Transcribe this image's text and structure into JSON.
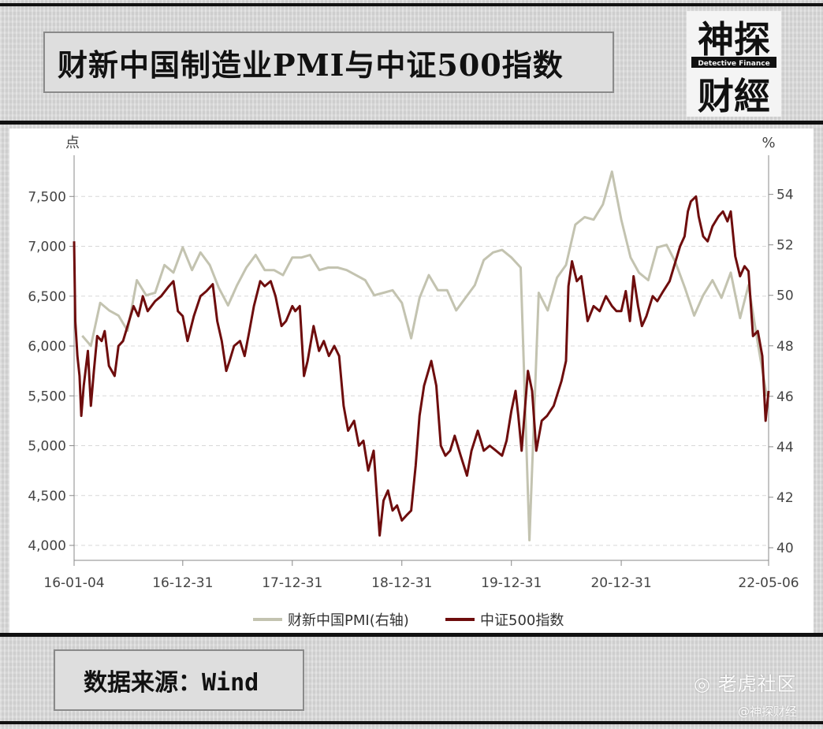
{
  "header": {
    "title": "财新中国制造业PMI与中证500指数",
    "logo_top": "神探",
    "logo_middle": "Detective Finance",
    "logo_bottom": "财經"
  },
  "footer": {
    "source": "数据来源：Wind",
    "watermark_main": "老虎社区",
    "watermark_sub": "@神探财经"
  },
  "colors": {
    "pmi_line": "#c3c3b0",
    "csi500_line": "#6e0d0d",
    "grid": "#d8d8d8"
  },
  "chart_data": {
    "type": "line",
    "left_unit": "点",
    "right_unit": "%",
    "x_ticks": [
      "16-01-04",
      "16-12-31",
      "17-12-31",
      "18-12-31",
      "19-12-31",
      "20-12-31",
      "22-05-06"
    ],
    "y_left_ticks": [
      "7,500",
      "7,000",
      "6,500",
      "6,000",
      "5,500",
      "5,000",
      "4,500",
      "4,000"
    ],
    "y_right_ticks": [
      "54",
      "52",
      "50",
      "48",
      "46",
      "44",
      "42",
      "40"
    ],
    "y_left_range": [
      3850,
      7850
    ],
    "y_right_range": [
      39.5,
      55.3
    ],
    "x_range": [
      "2016-01-04",
      "2022-05-06"
    ],
    "legend_position": "bottom",
    "grid": true,
    "series": [
      {
        "name": "财新中国PMI(右轴)",
        "axis": "right",
        "points": [
          [
            "2016-01-31",
            48.4
          ],
          [
            "2016-02-29",
            48.0
          ],
          [
            "2016-03-31",
            49.7
          ],
          [
            "2016-04-30",
            49.4
          ],
          [
            "2016-05-31",
            49.2
          ],
          [
            "2016-06-30",
            48.6
          ],
          [
            "2016-07-31",
            50.6
          ],
          [
            "2016-08-31",
            50.0
          ],
          [
            "2016-09-30",
            50.1
          ],
          [
            "2016-10-31",
            51.2
          ],
          [
            "2016-11-30",
            50.9
          ],
          [
            "2016-12-31",
            51.9
          ],
          [
            "2017-01-31",
            51.0
          ],
          [
            "2017-02-28",
            51.7
          ],
          [
            "2017-03-31",
            51.2
          ],
          [
            "2017-04-30",
            50.3
          ],
          [
            "2017-05-31",
            49.6
          ],
          [
            "2017-06-30",
            50.4
          ],
          [
            "2017-07-31",
            51.1
          ],
          [
            "2017-08-31",
            51.6
          ],
          [
            "2017-09-30",
            51.0
          ],
          [
            "2017-10-31",
            51.0
          ],
          [
            "2017-11-30",
            50.8
          ],
          [
            "2017-12-31",
            51.5
          ],
          [
            "2018-01-31",
            51.5
          ],
          [
            "2018-02-28",
            51.6
          ],
          [
            "2018-03-31",
            51.0
          ],
          [
            "2018-04-30",
            51.1
          ],
          [
            "2018-05-31",
            51.1
          ],
          [
            "2018-06-30",
            51.0
          ],
          [
            "2018-07-31",
            50.8
          ],
          [
            "2018-08-31",
            50.6
          ],
          [
            "2018-09-30",
            50.0
          ],
          [
            "2018-10-31",
            50.1
          ],
          [
            "2018-11-30",
            50.2
          ],
          [
            "2018-12-31",
            49.7
          ],
          [
            "2019-01-31",
            48.3
          ],
          [
            "2019-02-28",
            49.9
          ],
          [
            "2019-03-31",
            50.8
          ],
          [
            "2019-04-30",
            50.2
          ],
          [
            "2019-05-31",
            50.2
          ],
          [
            "2019-06-30",
            49.4
          ],
          [
            "2019-07-31",
            49.9
          ],
          [
            "2019-08-31",
            50.4
          ],
          [
            "2019-09-30",
            51.4
          ],
          [
            "2019-10-31",
            51.7
          ],
          [
            "2019-11-30",
            51.8
          ],
          [
            "2019-12-31",
            51.5
          ],
          [
            "2020-01-31",
            51.1
          ],
          [
            "2020-02-29",
            40.3
          ],
          [
            "2020-03-31",
            50.1
          ],
          [
            "2020-04-30",
            49.4
          ],
          [
            "2020-05-31",
            50.7
          ],
          [
            "2020-06-30",
            51.2
          ],
          [
            "2020-07-31",
            52.8
          ],
          [
            "2020-08-31",
            53.1
          ],
          [
            "2020-09-30",
            53.0
          ],
          [
            "2020-10-31",
            53.6
          ],
          [
            "2020-11-30",
            54.9
          ],
          [
            "2020-12-31",
            53.0
          ],
          [
            "2021-01-31",
            51.5
          ],
          [
            "2021-02-28",
            50.9
          ],
          [
            "2021-03-31",
            50.6
          ],
          [
            "2021-04-30",
            51.9
          ],
          [
            "2021-05-31",
            52.0
          ],
          [
            "2021-06-30",
            51.3
          ],
          [
            "2021-07-31",
            50.3
          ],
          [
            "2021-08-31",
            49.2
          ],
          [
            "2021-09-30",
            50.0
          ],
          [
            "2021-10-31",
            50.6
          ],
          [
            "2021-11-30",
            49.9
          ],
          [
            "2021-12-31",
            50.9
          ],
          [
            "2022-01-31",
            49.1
          ],
          [
            "2022-02-28",
            50.4
          ],
          [
            "2022-03-31",
            48.1
          ],
          [
            "2022-04-30",
            46.0
          ]
        ]
      },
      {
        "name": "中证500指数",
        "axis": "left",
        "points": [
          [
            "2016-01-04",
            7050
          ],
          [
            "2016-01-08",
            6250
          ],
          [
            "2016-01-15",
            5900
          ],
          [
            "2016-01-22",
            5700
          ],
          [
            "2016-01-28",
            5300
          ],
          [
            "2016-02-05",
            5600
          ],
          [
            "2016-02-19",
            5950
          ],
          [
            "2016-02-29",
            5400
          ],
          [
            "2016-03-10",
            5750
          ],
          [
            "2016-03-21",
            6100
          ],
          [
            "2016-04-05",
            6050
          ],
          [
            "2016-04-15",
            6150
          ],
          [
            "2016-04-29",
            5800
          ],
          [
            "2016-05-18",
            5700
          ],
          [
            "2016-05-31",
            6000
          ],
          [
            "2016-06-15",
            6050
          ],
          [
            "2016-06-30",
            6200
          ],
          [
            "2016-07-20",
            6400
          ],
          [
            "2016-08-05",
            6300
          ],
          [
            "2016-08-20",
            6500
          ],
          [
            "2016-09-05",
            6350
          ],
          [
            "2016-09-30",
            6450
          ],
          [
            "2016-10-20",
            6500
          ],
          [
            "2016-11-15",
            6600
          ],
          [
            "2016-11-30",
            6650
          ],
          [
            "2016-12-15",
            6350
          ],
          [
            "2016-12-31",
            6300
          ],
          [
            "2017-01-16",
            6050
          ],
          [
            "2017-02-06",
            6300
          ],
          [
            "2017-02-28",
            6500
          ],
          [
            "2017-03-20",
            6550
          ],
          [
            "2017-04-10",
            6620
          ],
          [
            "2017-04-25",
            6250
          ],
          [
            "2017-05-10",
            6050
          ],
          [
            "2017-05-25",
            5750
          ],
          [
            "2017-06-05",
            5850
          ],
          [
            "2017-06-20",
            6000
          ],
          [
            "2017-07-10",
            6050
          ],
          [
            "2017-07-25",
            5900
          ],
          [
            "2017-08-10",
            6150
          ],
          [
            "2017-08-25",
            6400
          ],
          [
            "2017-09-15",
            6650
          ],
          [
            "2017-09-30",
            6600
          ],
          [
            "2017-10-20",
            6650
          ],
          [
            "2017-11-05",
            6500
          ],
          [
            "2017-11-25",
            6200
          ],
          [
            "2017-12-10",
            6250
          ],
          [
            "2017-12-31",
            6400
          ],
          [
            "2018-01-10",
            6350
          ],
          [
            "2018-01-25",
            6400
          ],
          [
            "2018-02-08",
            5700
          ],
          [
            "2018-02-20",
            5850
          ],
          [
            "2018-03-12",
            6200
          ],
          [
            "2018-03-30",
            5950
          ],
          [
            "2018-04-15",
            6050
          ],
          [
            "2018-05-02",
            5900
          ],
          [
            "2018-05-20",
            6000
          ],
          [
            "2018-06-05",
            5900
          ],
          [
            "2018-06-20",
            5400
          ],
          [
            "2018-07-05",
            5150
          ],
          [
            "2018-07-25",
            5250
          ],
          [
            "2018-08-10",
            5000
          ],
          [
            "2018-08-25",
            5050
          ],
          [
            "2018-09-10",
            4750
          ],
          [
            "2018-09-28",
            4950
          ],
          [
            "2018-10-18",
            4100
          ],
          [
            "2018-10-31",
            4450
          ],
          [
            "2018-11-15",
            4550
          ],
          [
            "2018-11-30",
            4350
          ],
          [
            "2018-12-15",
            4400
          ],
          [
            "2018-12-31",
            4250
          ],
          [
            "2019-01-15",
            4300
          ],
          [
            "2019-01-31",
            4350
          ],
          [
            "2019-02-15",
            4800
          ],
          [
            "2019-02-28",
            5300
          ],
          [
            "2019-03-15",
            5600
          ],
          [
            "2019-04-08",
            5850
          ],
          [
            "2019-04-25",
            5600
          ],
          [
            "2019-05-10",
            5000
          ],
          [
            "2019-05-25",
            4900
          ],
          [
            "2019-06-10",
            4950
          ],
          [
            "2019-06-25",
            5100
          ],
          [
            "2019-07-15",
            4900
          ],
          [
            "2019-08-05",
            4700
          ],
          [
            "2019-08-20",
            4950
          ],
          [
            "2019-09-10",
            5150
          ],
          [
            "2019-09-30",
            4950
          ],
          [
            "2019-10-20",
            5000
          ],
          [
            "2019-11-10",
            4950
          ],
          [
            "2019-11-30",
            4900
          ],
          [
            "2019-12-15",
            5050
          ],
          [
            "2019-12-31",
            5350
          ],
          [
            "2020-01-14",
            5550
          ],
          [
            "2020-01-23",
            5300
          ],
          [
            "2020-02-03",
            4950
          ],
          [
            "2020-02-24",
            5750
          ],
          [
            "2020-03-09",
            5550
          ],
          [
            "2020-03-23",
            4950
          ],
          [
            "2020-04-10",
            5250
          ],
          [
            "2020-04-28",
            5300
          ],
          [
            "2020-05-20",
            5400
          ],
          [
            "2020-06-15",
            5650
          ],
          [
            "2020-06-30",
            5850
          ],
          [
            "2020-07-08",
            6600
          ],
          [
            "2020-07-20",
            6850
          ],
          [
            "2020-08-05",
            6650
          ],
          [
            "2020-08-20",
            6700
          ],
          [
            "2020-09-10",
            6250
          ],
          [
            "2020-09-30",
            6400
          ],
          [
            "2020-10-20",
            6350
          ],
          [
            "2020-11-10",
            6500
          ],
          [
            "2020-11-30",
            6400
          ],
          [
            "2020-12-15",
            6350
          ],
          [
            "2020-12-31",
            6350
          ],
          [
            "2021-01-15",
            6550
          ],
          [
            "2021-01-29",
            6250
          ],
          [
            "2021-02-10",
            6700
          ],
          [
            "2021-02-25",
            6400
          ],
          [
            "2021-03-10",
            6200
          ],
          [
            "2021-03-25",
            6300
          ],
          [
            "2021-04-15",
            6500
          ],
          [
            "2021-04-30",
            6450
          ],
          [
            "2021-05-20",
            6550
          ],
          [
            "2021-06-10",
            6650
          ],
          [
            "2021-06-25",
            6800
          ],
          [
            "2021-07-15",
            7000
          ],
          [
            "2021-07-30",
            7100
          ],
          [
            "2021-08-10",
            7350
          ],
          [
            "2021-08-20",
            7450
          ],
          [
            "2021-09-06",
            7500
          ],
          [
            "2021-09-15",
            7300
          ],
          [
            "2021-09-30",
            7100
          ],
          [
            "2021-10-15",
            7050
          ],
          [
            "2021-10-31",
            7200
          ],
          [
            "2021-11-20",
            7300
          ],
          [
            "2021-12-05",
            7350
          ],
          [
            "2021-12-20",
            7250
          ],
          [
            "2021-12-31",
            7350
          ],
          [
            "2022-01-15",
            6900
          ],
          [
            "2022-01-31",
            6700
          ],
          [
            "2022-02-15",
            6800
          ],
          [
            "2022-02-28",
            6750
          ],
          [
            "2022-03-15",
            6100
          ],
          [
            "2022-03-31",
            6150
          ],
          [
            "2022-04-15",
            5900
          ],
          [
            "2022-04-26",
            5250
          ],
          [
            "2022-05-06",
            5550
          ]
        ]
      }
    ]
  }
}
